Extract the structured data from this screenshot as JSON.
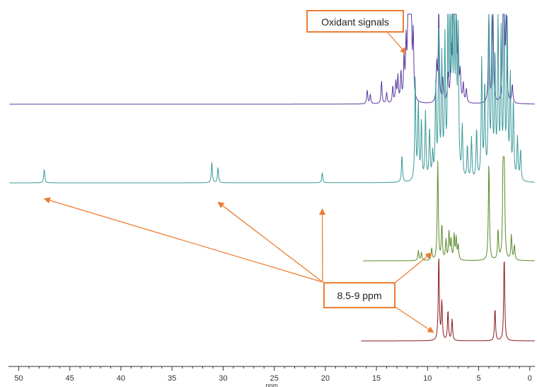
{
  "chart_data": {
    "type": "line",
    "title": "",
    "xlabel": "ppm",
    "ylabel": "",
    "xlim": [
      51,
      -0.5
    ],
    "x_reversed": true,
    "x_ticks": [
      50,
      45,
      40,
      35,
      30,
      25,
      20,
      15,
      10,
      5,
      0
    ],
    "grid": false,
    "legend": "none",
    "series": [
      {
        "color": "#5b3a9e",
        "baseline_offset": 3,
        "x_start": 50.9,
        "x_end": -0.5,
        "peaks": [
          {
            "x": 15.9,
            "h": 0.15
          },
          {
            "x": 15.6,
            "h": 0.1
          },
          {
            "x": 14.5,
            "h": 0.25
          },
          {
            "x": 14.0,
            "h": 0.12
          },
          {
            "x": 13.4,
            "h": 0.18
          },
          {
            "x": 13.1,
            "h": 0.22
          },
          {
            "x": 12.9,
            "h": 0.28
          },
          {
            "x": 12.6,
            "h": 0.32
          },
          {
            "x": 12.3,
            "h": 0.45
          },
          {
            "x": 12.1,
            "h": 0.6
          },
          {
            "x": 11.9,
            "h": 1.0
          },
          {
            "x": 11.8,
            "h": 1.0
          },
          {
            "x": 11.7,
            "h": 1.0
          },
          {
            "x": 11.6,
            "h": 1.0
          },
          {
            "x": 11.4,
            "h": 0.7
          },
          {
            "x": 9.1,
            "h": 0.4
          },
          {
            "x": 8.9,
            "h": 1.0
          },
          {
            "x": 8.5,
            "h": 0.25
          },
          {
            "x": 8.0,
            "h": 0.3
          },
          {
            "x": 7.7,
            "h": 0.5
          },
          {
            "x": 7.5,
            "h": 1.0
          },
          {
            "x": 7.4,
            "h": 1.0
          },
          {
            "x": 7.3,
            "h": 1.0
          },
          {
            "x": 7.2,
            "h": 0.9
          },
          {
            "x": 7.0,
            "h": 0.6
          },
          {
            "x": 6.8,
            "h": 0.3
          },
          {
            "x": 6.5,
            "h": 0.2
          },
          {
            "x": 6.2,
            "h": 0.15
          },
          {
            "x": 4.0,
            "h": 1.0
          },
          {
            "x": 3.6,
            "h": 1.0
          },
          {
            "x": 2.6,
            "h": 1.0
          },
          {
            "x": 2.5,
            "h": 1.0
          },
          {
            "x": 2.3,
            "h": 1.0
          },
          {
            "x": 1.7,
            "h": 0.2
          }
        ]
      },
      {
        "color": "#3a9a9a",
        "baseline_offset": 2,
        "x_start": 50.9,
        "x_end": -0.5,
        "peaks": [
          {
            "x": 47.5,
            "h": 0.08
          },
          {
            "x": 31.1,
            "h": 0.12
          },
          {
            "x": 30.5,
            "h": 0.09
          },
          {
            "x": 20.3,
            "h": 0.06
          },
          {
            "x": 12.5,
            "h": 0.16
          },
          {
            "x": 11.2,
            "h": 0.6
          },
          {
            "x": 10.9,
            "h": 0.45
          },
          {
            "x": 10.6,
            "h": 0.35
          },
          {
            "x": 10.2,
            "h": 0.4
          },
          {
            "x": 9.8,
            "h": 0.3
          },
          {
            "x": 9.5,
            "h": 0.15
          },
          {
            "x": 9.2,
            "h": 0.55
          },
          {
            "x": 8.9,
            "h": 0.9
          },
          {
            "x": 8.6,
            "h": 0.7
          },
          {
            "x": 8.3,
            "h": 0.8
          },
          {
            "x": 8.0,
            "h": 0.95
          },
          {
            "x": 7.8,
            "h": 1.0
          },
          {
            "x": 7.6,
            "h": 1.0
          },
          {
            "x": 7.4,
            "h": 1.0
          },
          {
            "x": 7.2,
            "h": 1.0
          },
          {
            "x": 7.0,
            "h": 0.85
          },
          {
            "x": 6.6,
            "h": 0.3
          },
          {
            "x": 6.1,
            "h": 0.2
          },
          {
            "x": 5.7,
            "h": 0.25
          },
          {
            "x": 5.2,
            "h": 0.3
          },
          {
            "x": 4.7,
            "h": 0.7
          },
          {
            "x": 4.4,
            "h": 0.55
          },
          {
            "x": 4.0,
            "h": 1.0
          },
          {
            "x": 3.7,
            "h": 1.0
          },
          {
            "x": 3.4,
            "h": 0.7
          },
          {
            "x": 3.1,
            "h": 0.95
          },
          {
            "x": 2.8,
            "h": 0.85
          },
          {
            "x": 2.5,
            "h": 1.0
          },
          {
            "x": 2.2,
            "h": 0.9
          },
          {
            "x": 1.9,
            "h": 0.6
          },
          {
            "x": 1.6,
            "h": 0.45
          },
          {
            "x": 1.2,
            "h": 0.25
          },
          {
            "x": 0.9,
            "h": 0.18
          }
        ]
      },
      {
        "color": "#5a8a2a",
        "baseline_offset": 1,
        "x_start": 16.3,
        "x_end": -0.5,
        "peaks": [
          {
            "x": 10.9,
            "h": 0.1
          },
          {
            "x": 10.6,
            "h": 0.08
          },
          {
            "x": 9.6,
            "h": 0.12
          },
          {
            "x": 9.0,
            "h": 1.0
          },
          {
            "x": 8.6,
            "h": 0.35
          },
          {
            "x": 8.2,
            "h": 0.2
          },
          {
            "x": 7.9,
            "h": 0.28
          },
          {
            "x": 7.7,
            "h": 0.2
          },
          {
            "x": 7.4,
            "h": 0.25
          },
          {
            "x": 7.2,
            "h": 0.22
          },
          {
            "x": 7.0,
            "h": 0.15
          },
          {
            "x": 4.0,
            "h": 1.0
          },
          {
            "x": 3.1,
            "h": 0.3
          },
          {
            "x": 2.6,
            "h": 1.0
          },
          {
            "x": 2.5,
            "h": 1.0
          },
          {
            "x": 1.8,
            "h": 0.25
          },
          {
            "x": 1.5,
            "h": 0.15
          }
        ]
      },
      {
        "color": "#8a1a1a",
        "baseline_offset": 0,
        "x_start": 16.5,
        "x_end": -0.5,
        "peaks": [
          {
            "x": 8.9,
            "h": 1.0
          },
          {
            "x": 8.6,
            "h": 0.45
          },
          {
            "x": 8.0,
            "h": 0.35
          },
          {
            "x": 7.6,
            "h": 0.25
          },
          {
            "x": 3.4,
            "h": 0.38
          },
          {
            "x": 2.5,
            "h": 1.0
          }
        ]
      }
    ],
    "annotations": [
      {
        "text": "Oxidant signals",
        "box_color": "#ed7d31",
        "arrows_to": [
          {
            "x": 12.1,
            "series": 0,
            "lift": 0.55
          }
        ]
      },
      {
        "text": "8.5-9 ppm",
        "box_color": "#ed7d31",
        "arrows_to": [
          {
            "x": 47.5,
            "series": 1,
            "lift": -0.06
          },
          {
            "x": 30.5,
            "series": 1,
            "lift": -0.08
          },
          {
            "x": 20.3,
            "series": 1,
            "lift": -0.12
          },
          {
            "x": 9.2,
            "series": 2,
            "lift": 0.08
          },
          {
            "x": 9.0,
            "series": 3,
            "lift": 0.1
          }
        ]
      }
    ]
  }
}
